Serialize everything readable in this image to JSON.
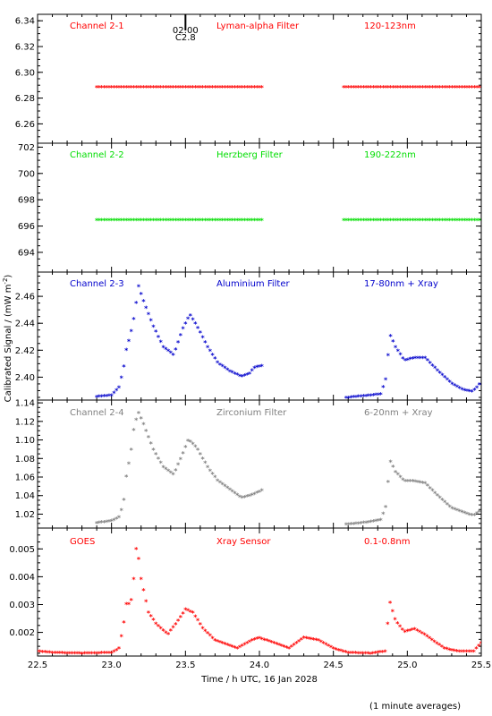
{
  "figure": {
    "ylabel": "Calibrated Signal / (mW m",
    "ylabel_sup": "-2",
    "ylabel_tail": ")",
    "xlabel": "Time / h UTC, 16 Jan 2028",
    "footnote": "(1 minute averages)",
    "flare_time": "02:00",
    "flare_class": "C2.8",
    "flare_x": 23.5
  },
  "chart_data": [
    {
      "type": "scatter",
      "channel": "Channel 2-1",
      "filter": "Lyman-alpha Filter",
      "band": "120-123nm",
      "color": "#ff0000",
      "xlim": [
        22.5,
        25.5
      ],
      "ylim": [
        6.245,
        6.345
      ],
      "yticks": [
        6.26,
        6.28,
        6.3,
        6.32,
        6.34
      ],
      "ytick_labels": [
        "6.26",
        "6.28",
        "6.30",
        "6.32",
        "6.34"
      ],
      "segments": [
        [
          22.9,
          24.03
        ],
        [
          24.57,
          25.5
        ]
      ],
      "baseline": [
        6.288,
        6.288
      ]
    },
    {
      "type": "scatter",
      "channel": "Channel 2-2",
      "filter": "Herzberg Filter",
      "band": "190-222nm",
      "color": "#00dd00",
      "xlim": [
        22.5,
        25.5
      ],
      "ylim": [
        692.5,
        702.3
      ],
      "yticks": [
        694,
        696,
        698,
        700,
        702
      ],
      "ytick_labels": [
        "694",
        "696",
        "698",
        "700",
        "702"
      ],
      "segments": [
        [
          22.9,
          24.03
        ],
        [
          24.57,
          25.5
        ]
      ],
      "baseline": [
        696.4,
        696.4
      ]
    },
    {
      "type": "scatter",
      "channel": "Channel 2-3",
      "filter": "Aluminium Filter",
      "band": "17-80nm + Xray",
      "color": "#0000cc",
      "xlim": [
        22.5,
        25.5
      ],
      "ylim": [
        2.383,
        2.478
      ],
      "yticks": [
        2.4,
        2.42,
        2.44,
        2.46
      ],
      "ytick_labels": [
        "2.40",
        "2.42",
        "2.44",
        "2.46"
      ],
      "segments": [
        [
          22.9,
          24.03
        ],
        [
          24.57,
          25.5
        ]
      ],
      "baseline": [
        2.385,
        2.388
      ],
      "key_points": [
        [
          22.9,
          2.385
        ],
        [
          23.0,
          2.386
        ],
        [
          23.05,
          2.392
        ],
        [
          23.08,
          2.405
        ],
        [
          23.1,
          2.42
        ],
        [
          23.13,
          2.432
        ],
        [
          23.16,
          2.448
        ],
        [
          23.18,
          2.468
        ],
        [
          23.22,
          2.455
        ],
        [
          23.28,
          2.438
        ],
        [
          23.35,
          2.422
        ],
        [
          23.42,
          2.416
        ],
        [
          23.48,
          2.435
        ],
        [
          23.53,
          2.446
        ],
        [
          23.58,
          2.437
        ],
        [
          23.65,
          2.422
        ],
        [
          23.72,
          2.41
        ],
        [
          23.8,
          2.404
        ],
        [
          23.88,
          2.4
        ],
        [
          23.93,
          2.402
        ],
        [
          23.97,
          2.407
        ],
        [
          24.03,
          2.408
        ],
        [
          24.57,
          2.384
        ],
        [
          24.65,
          2.385
        ],
        [
          24.75,
          2.386
        ],
        [
          24.82,
          2.387
        ],
        [
          24.86,
          2.4
        ],
        [
          24.88,
          2.432
        ],
        [
          24.92,
          2.422
        ],
        [
          24.98,
          2.412
        ],
        [
          25.05,
          2.414
        ],
        [
          25.12,
          2.414
        ],
        [
          25.2,
          2.405
        ],
        [
          25.3,
          2.395
        ],
        [
          25.38,
          2.39
        ],
        [
          25.44,
          2.389
        ],
        [
          25.47,
          2.392
        ],
        [
          25.5,
          2.396
        ]
      ]
    },
    {
      "type": "scatter",
      "channel": "Channel 2-4",
      "filter": "Zirconium Filter",
      "band": "6-20nm + Xray",
      "color": "#808080",
      "xlim": [
        22.5,
        25.5
      ],
      "ylim": [
        1.005,
        1.143
      ],
      "yticks": [
        1.02,
        1.04,
        1.06,
        1.08,
        1.1,
        1.12,
        1.14
      ],
      "ytick_labels": [
        "1.02",
        "1.04",
        "1.06",
        "1.08",
        "1.10",
        "1.12",
        "1.14"
      ],
      "segments": [
        [
          22.9,
          24.03
        ],
        [
          24.57,
          25.5
        ]
      ],
      "baseline": [
        1.01,
        1.01
      ],
      "key_points": [
        [
          22.9,
          1.01
        ],
        [
          23.0,
          1.012
        ],
        [
          23.05,
          1.016
        ],
        [
          23.08,
          1.03
        ],
        [
          23.1,
          1.06
        ],
        [
          23.13,
          1.085
        ],
        [
          23.15,
          1.11
        ],
        [
          23.18,
          1.13
        ],
        [
          23.22,
          1.115
        ],
        [
          23.28,
          1.09
        ],
        [
          23.35,
          1.07
        ],
        [
          23.42,
          1.062
        ],
        [
          23.47,
          1.08
        ],
        [
          23.52,
          1.1
        ],
        [
          23.58,
          1.09
        ],
        [
          23.65,
          1.07
        ],
        [
          23.72,
          1.055
        ],
        [
          23.8,
          1.046
        ],
        [
          23.88,
          1.037
        ],
        [
          23.95,
          1.04
        ],
        [
          24.03,
          1.046
        ],
        [
          24.57,
          1.008
        ],
        [
          24.7,
          1.01
        ],
        [
          24.82,
          1.013
        ],
        [
          24.86,
          1.03
        ],
        [
          24.88,
          1.078
        ],
        [
          24.92,
          1.065
        ],
        [
          24.98,
          1.055
        ],
        [
          25.05,
          1.055
        ],
        [
          25.12,
          1.053
        ],
        [
          25.2,
          1.04
        ],
        [
          25.3,
          1.026
        ],
        [
          25.4,
          1.02
        ],
        [
          25.45,
          1.018
        ],
        [
          25.5,
          1.024
        ]
      ]
    },
    {
      "type": "scatter",
      "channel": "GOES",
      "filter": "Xray Sensor",
      "band": "0.1-0.8nm",
      "color": "#ff0000",
      "xlim": [
        22.5,
        25.5
      ],
      "ylim": [
        0.00115,
        0.00575
      ],
      "yticks": [
        0.002,
        0.003,
        0.004,
        0.005
      ],
      "ytick_labels": [
        "0.002",
        "0.003",
        "0.004",
        "0.005"
      ],
      "xticks": [
        22.5,
        23.0,
        23.5,
        24.0,
        24.5,
        25.0,
        25.5
      ],
      "xtick_labels": [
        "22.5",
        "23.0",
        "23.5",
        "24.0",
        "24.5",
        "25.0",
        "25.5"
      ],
      "segments": [
        [
          22.5,
          25.5
        ]
      ],
      "baseline": [
        0.00125,
        0.00125
      ],
      "key_points": [
        [
          22.5,
          0.0013
        ],
        [
          22.6,
          0.00125
        ],
        [
          22.8,
          0.00122
        ],
        [
          23.0,
          0.00125
        ],
        [
          23.05,
          0.0014
        ],
        [
          23.08,
          0.0022
        ],
        [
          23.1,
          0.003
        ],
        [
          23.13,
          0.003
        ],
        [
          23.15,
          0.0039
        ],
        [
          23.17,
          0.0052
        ],
        [
          23.2,
          0.0039
        ],
        [
          23.25,
          0.0027
        ],
        [
          23.3,
          0.0023
        ],
        [
          23.38,
          0.0019
        ],
        [
          23.45,
          0.0024
        ],
        [
          23.5,
          0.0028
        ],
        [
          23.55,
          0.0027
        ],
        [
          23.62,
          0.0021
        ],
        [
          23.7,
          0.0017
        ],
        [
          23.85,
          0.0014
        ],
        [
          23.95,
          0.0017
        ],
        [
          24.0,
          0.00178
        ],
        [
          24.1,
          0.0016
        ],
        [
          24.2,
          0.0014
        ],
        [
          24.3,
          0.0018
        ],
        [
          24.4,
          0.0017
        ],
        [
          24.5,
          0.0014
        ],
        [
          24.6,
          0.00125
        ],
        [
          24.75,
          0.00122
        ],
        [
          24.85,
          0.0013
        ],
        [
          24.88,
          0.0031
        ],
        [
          24.92,
          0.0024
        ],
        [
          24.98,
          0.002
        ],
        [
          25.05,
          0.0021
        ],
        [
          25.12,
          0.0019
        ],
        [
          25.25,
          0.0014
        ],
        [
          25.35,
          0.0013
        ],
        [
          25.45,
          0.0013
        ],
        [
          25.5,
          0.0016
        ]
      ]
    }
  ]
}
